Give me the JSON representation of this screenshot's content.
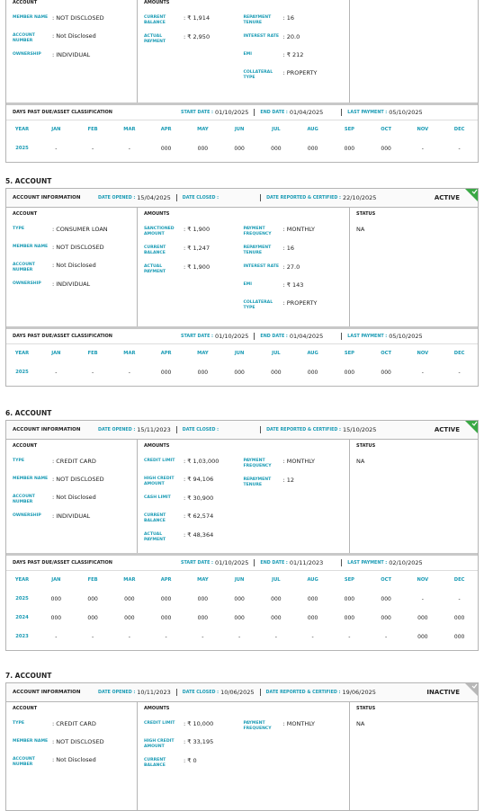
{
  "months": [
    "JAN",
    "FEB",
    "MAR",
    "APR",
    "MAY",
    "JUN",
    "JUL",
    "AUG",
    "SEP",
    "OCT",
    "NOV",
    "DEC"
  ],
  "year_label": "YEAR",
  "accounts": [
    {
      "account": {
        "title": "ACCOUNT",
        "fields": [
          {
            "label": "MEMBER NAME",
            "value": "NOT DISCLOSED"
          },
          {
            "label": "ACCOUNT NUMBER",
            "value": "Not Disclosed"
          },
          {
            "label": "OWNERSHIP",
            "value": "INDIVIDUAL"
          }
        ]
      },
      "amounts": {
        "title": "AMOUNTS",
        "left": [
          {
            "label": "CURRENT BALANCE",
            "value": "₹ 1,914"
          },
          {
            "label": "ACTUAL PAYMENT",
            "value": "₹ 2,950"
          }
        ],
        "right": [
          {
            "label": "REPAYMENT TENURE",
            "value": "16"
          },
          {
            "label": "INTEREST RATE",
            "value": "20.0"
          },
          {
            "label": "EMI",
            "value": "₹ 212"
          },
          {
            "label": "COLLATERAL TYPE",
            "value": "PROPERTY"
          }
        ]
      },
      "dpd": {
        "title": "DAYS PAST DUE/ASSET CLASSIFICATION",
        "start_label": "START DATE :",
        "start": "01/10/2025",
        "end_label": "END DATE :",
        "end": "01/04/2025",
        "last_label": "LAST PAYMENT :",
        "last": "05/10/2025",
        "rows": [
          {
            "year": "2025",
            "values": [
              "-",
              "-",
              "-",
              "000",
              "000",
              "000",
              "000",
              "000",
              "000",
              "000",
              "-",
              "-"
            ]
          }
        ]
      }
    },
    {
      "heading": "5. ACCOUNT",
      "info": {
        "title": "ACCOUNT INFORMATION",
        "date_opened_label": "DATE OPENED :",
        "date_opened": "15/04/2025",
        "date_closed_label": "DATE CLOSED :",
        "date_reported_label": "DATE REPORTED & CERTIFIED :",
        "date_reported": "22/10/2025",
        "status": "ACTIVE",
        "badge_color": "#3aa845"
      },
      "account": {
        "title": "ACCOUNT",
        "fields": [
          {
            "label": "TYPE",
            "value": "CONSUMER LOAN"
          },
          {
            "label": "MEMBER NAME",
            "value": "NOT DISCLOSED"
          },
          {
            "label": "ACCOUNT NUMBER",
            "value": "Not Disclosed"
          },
          {
            "label": "OWNERSHIP",
            "value": "INDIVIDUAL"
          }
        ]
      },
      "amounts": {
        "title": "AMOUNTS",
        "left": [
          {
            "label": "SANCTIONED AMOUNT",
            "value": "₹ 1,900"
          },
          {
            "label": "CURRENT BALANCE",
            "value": "₹ 1,247"
          },
          {
            "label": "ACTUAL PAYMENT",
            "value": "₹ 1,900"
          }
        ],
        "right": [
          {
            "label": "PAYMENT FREQUENCY",
            "value": "MONTHLY"
          },
          {
            "label": "REPAYMENT TENURE",
            "value": "16"
          },
          {
            "label": "INTEREST RATE",
            "value": "27.0"
          },
          {
            "label": "EMI",
            "value": "₹ 143"
          },
          {
            "label": "COLLATERAL TYPE",
            "value": "PROPERTY"
          }
        ]
      },
      "status": {
        "title": "STATUS",
        "value": "NA"
      },
      "dpd": {
        "title": "DAYS PAST DUE/ASSET CLASSIFICATION",
        "start_label": "START DATE :",
        "start": "01/10/2025",
        "end_label": "END DATE :",
        "end": "01/04/2025",
        "last_label": "LAST PAYMENT :",
        "last": "05/10/2025",
        "rows": [
          {
            "year": "2025",
            "values": [
              "-",
              "-",
              "-",
              "000",
              "000",
              "000",
              "000",
              "000",
              "000",
              "000",
              "-",
              "-"
            ]
          }
        ]
      }
    },
    {
      "heading": "6. ACCOUNT",
      "info": {
        "title": "ACCOUNT INFORMATION",
        "date_opened_label": "DATE OPENED :",
        "date_opened": "15/11/2023",
        "date_closed_label": "DATE CLOSED :",
        "date_reported_label": "DATE REPORTED & CERTIFIED :",
        "date_reported": "15/10/2025",
        "status": "ACTIVE",
        "badge_color": "#3aa845"
      },
      "account": {
        "title": "ACCOUNT",
        "fields": [
          {
            "label": "TYPE",
            "value": "CREDIT CARD"
          },
          {
            "label": "MEMBER NAME",
            "value": "NOT DISCLOSED"
          },
          {
            "label": "ACCOUNT NUMBER",
            "value": "Not Disclosed"
          },
          {
            "label": "OWNERSHIP",
            "value": "INDIVIDUAL"
          }
        ]
      },
      "amounts": {
        "title": "AMOUNTS",
        "left": [
          {
            "label": "CREDIT LIMIT",
            "value": "₹ 1,03,000"
          },
          {
            "label": "HIGH CREDIT AMOUNT",
            "value": "₹ 94,106"
          },
          {
            "label": "CASH LIMIT",
            "value": "₹ 30,900"
          },
          {
            "label": "CURRENT BALANCE",
            "value": "₹ 62,574"
          },
          {
            "label": "ACTUAL PAYMENT",
            "value": "₹ 48,364"
          }
        ],
        "right": [
          {
            "label": "PAYMENT FREQUENCY",
            "value": "MONTHLY"
          },
          {
            "label": "REPAYMENT TENURE",
            "value": "12"
          }
        ]
      },
      "status": {
        "title": "STATUS",
        "value": "NA"
      },
      "dpd": {
        "title": "DAYS PAST DUE/ASSET CLASSIFICATION",
        "start_label": "START DATE :",
        "start": "01/10/2025",
        "end_label": "END DATE :",
        "end": "01/11/2023",
        "last_label": "LAST PAYMENT :",
        "last": "02/10/2025",
        "rows": [
          {
            "year": "2025",
            "values": [
              "000",
              "000",
              "000",
              "000",
              "000",
              "000",
              "000",
              "000",
              "000",
              "000",
              "-",
              "-"
            ]
          },
          {
            "year": "2024",
            "values": [
              "000",
              "000",
              "000",
              "000",
              "000",
              "000",
              "000",
              "000",
              "000",
              "000",
              "000",
              "000"
            ]
          },
          {
            "year": "2023",
            "values": [
              "-",
              "-",
              "-",
              "-",
              "-",
              "-",
              "-",
              "-",
              "-",
              "-",
              "000",
              "000"
            ]
          }
        ]
      }
    },
    {
      "heading": "7. ACCOUNT",
      "info": {
        "title": "ACCOUNT INFORMATION",
        "date_opened_label": "DATE OPENED :",
        "date_opened": "10/11/2023",
        "date_closed_label": "DATE CLOSED :",
        "date_closed": "10/06/2025",
        "date_reported_label": "DATE REPORTED & CERTIFIED :",
        "date_reported": "19/06/2025",
        "status": "INACTIVE",
        "badge_color": "#b8b8b8"
      },
      "account": {
        "title": "ACCOUNT",
        "fields": [
          {
            "label": "TYPE",
            "value": "CREDIT CARD"
          },
          {
            "label": "MEMBER NAME",
            "value": "NOT DISCLOSED"
          },
          {
            "label": "ACCOUNT NUMBER",
            "value": "Not Disclosed"
          }
        ]
      },
      "amounts": {
        "title": "AMOUNTS",
        "left": [
          {
            "label": "CREDIT LIMIT",
            "value": "₹ 10,000"
          },
          {
            "label": "HIGH CREDIT AMOUNT",
            "value": "₹ 33,195"
          },
          {
            "label": "CURRENT BALANCE",
            "value": "₹ 0"
          }
        ],
        "right": [
          {
            "label": "PAYMENT FREQUENCY",
            "value": "MONTHLY"
          }
        ]
      },
      "status": {
        "title": "STATUS",
        "value": "NA"
      }
    }
  ]
}
